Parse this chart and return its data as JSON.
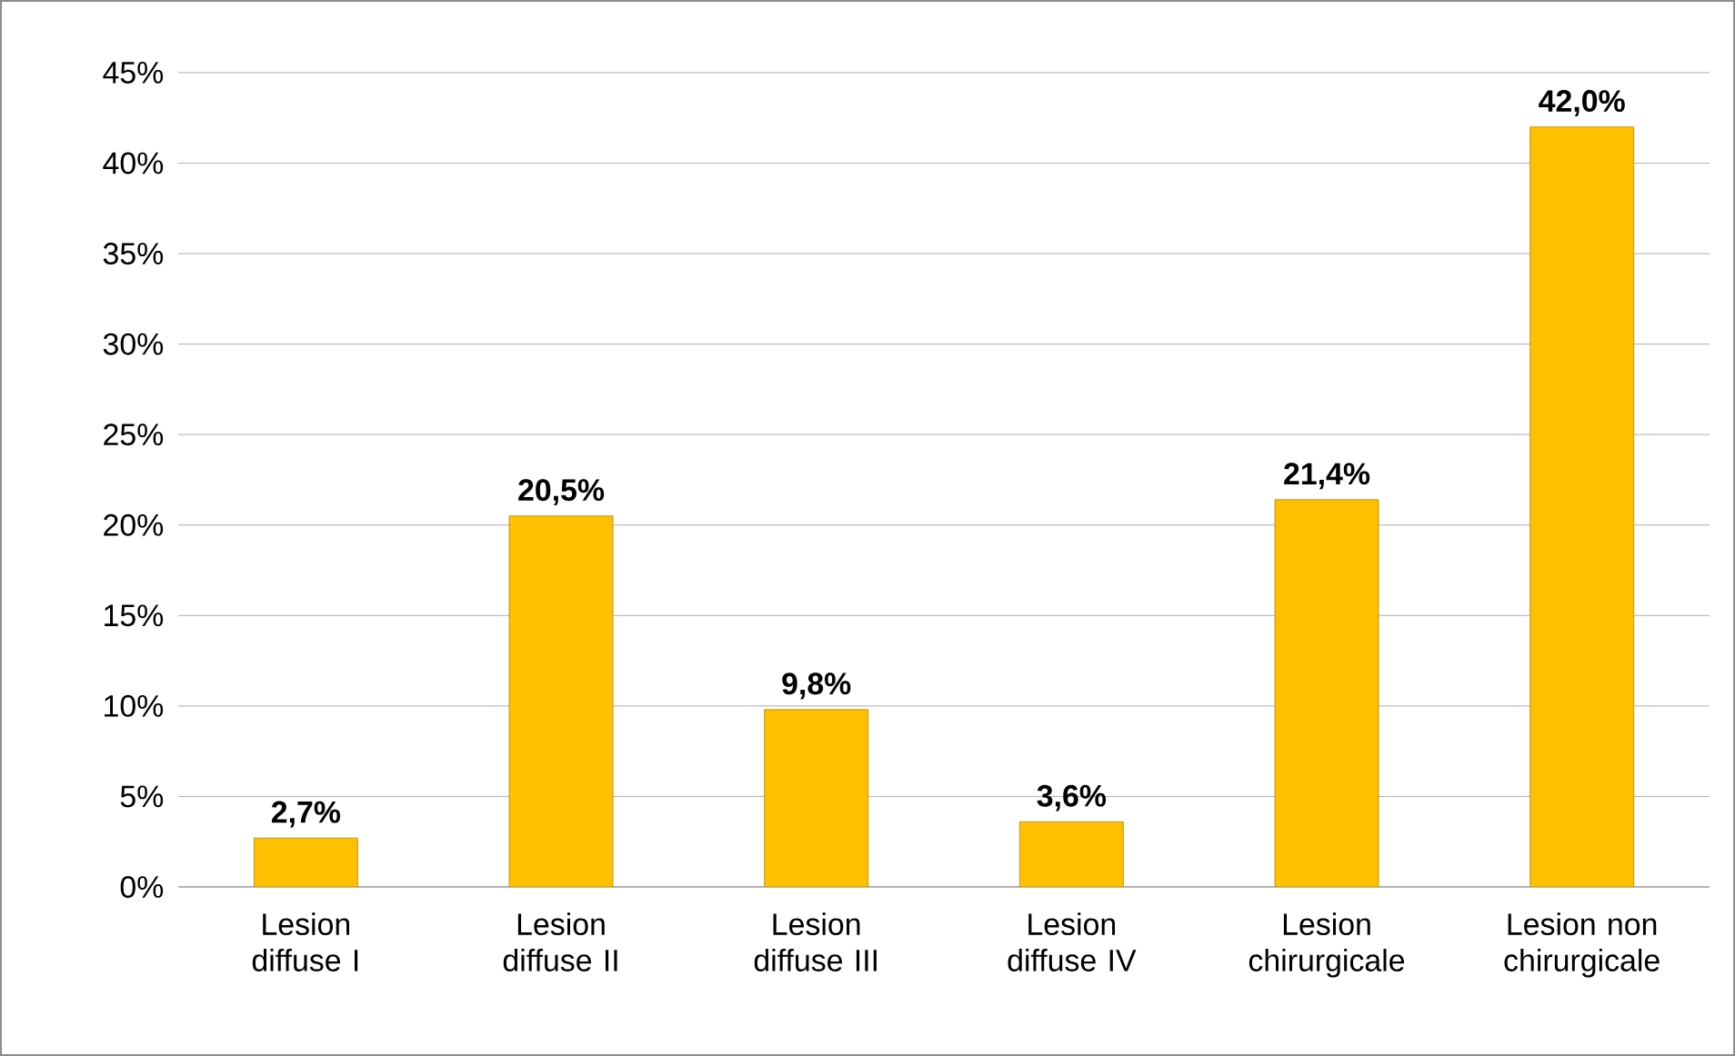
{
  "chart_data": {
    "type": "bar",
    "categories": [
      "Lesion diffuse I",
      "Lesion diffuse II",
      "Lesion diffuse III",
      "Lesion diffuse IV",
      "Lesion chirurgicale",
      "Lesion non chirurgicale"
    ],
    "values": [
      2.7,
      20.5,
      9.8,
      3.6,
      21.4,
      42.0
    ],
    "value_labels": [
      "2,7%",
      "20,5%",
      "9,8%",
      "3,6%",
      "21,4%",
      "42,0%"
    ],
    "color": "#ffc000",
    "ylim": [
      0,
      45
    ],
    "yticks": [
      {
        "value": 0,
        "label": "0%"
      },
      {
        "value": 5,
        "label": "5%"
      },
      {
        "value": 10,
        "label": "10%"
      },
      {
        "value": 15,
        "label": "15%"
      },
      {
        "value": 20,
        "label": "20%"
      },
      {
        "value": 25,
        "label": "25%"
      },
      {
        "value": 30,
        "label": "30%"
      },
      {
        "value": 35,
        "label": "35%"
      },
      {
        "value": 40,
        "label": "40%"
      },
      {
        "value": 45,
        "label": "45%"
      }
    ],
    "grid": "y"
  }
}
